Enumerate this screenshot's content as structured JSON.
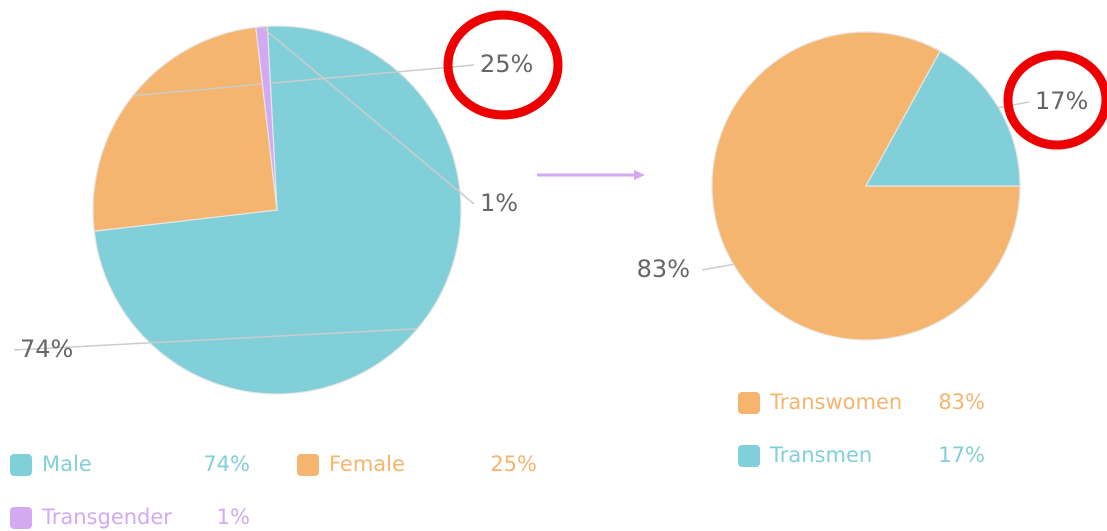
{
  "chart_data": [
    {
      "type": "pie",
      "categories": [
        "Male",
        "Female",
        "Transgender"
      ],
      "values": [
        74,
        25,
        1
      ],
      "value_labels": [
        "74%",
        "25%",
        "1%"
      ],
      "colors": [
        "#81d0d9",
        "#f5b56e",
        "#d3a9f2"
      ],
      "legend": true
    },
    {
      "type": "pie",
      "categories": [
        "Transwomen",
        "Transmen"
      ],
      "values": [
        83,
        17
      ],
      "value_labels": [
        "83%",
        "17%"
      ],
      "colors": [
        "#f5b56e",
        "#81d0d9"
      ],
      "legend": true
    }
  ]
}
